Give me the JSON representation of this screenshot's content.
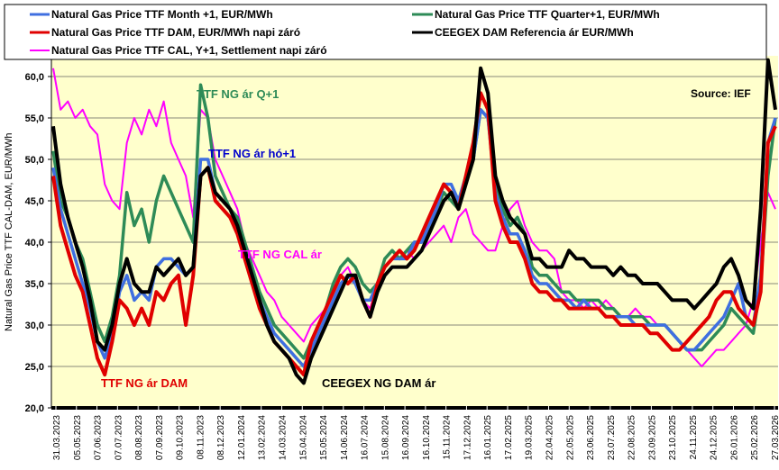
{
  "chart_data": {
    "type": "line",
    "title": "",
    "ylabel": "Natural Gas Price TTF CAL-DAM, EUR/MWh",
    "xlabel": "",
    "ylim": [
      20,
      62.5
    ],
    "yticks": [
      20,
      25,
      30,
      35,
      40,
      45,
      50,
      55,
      60
    ],
    "ytick_labels": [
      "20,0",
      "25,0",
      "30,0",
      "35,0",
      "40,0",
      "45,0",
      "50,0",
      "55,0",
      "60,0"
    ],
    "grid": true,
    "legend_position": "top",
    "x_tick_labels": [
      "31.03.2023",
      "05.05.2023",
      "07.06.2023",
      "07.07.2023",
      "08.08.2023",
      "07.09.2023",
      "09.10.2023",
      "08.11.2023",
      "08.12.2023",
      "12.01.2024",
      "13.02.2024",
      "14.03.2024",
      "15.04.2024",
      "15.05.2024",
      "14.06.2024",
      "16.07.2024",
      "15.08.2024",
      "16.09.2024",
      "16.10.2024",
      "15.11.2024",
      "17.12.2024",
      "16.01.2025",
      "17.02.2025",
      "19.03.2025",
      "22.04.2025",
      "22.05.2025",
      "23.06.2025",
      "23.07.2025",
      "22.08.2025",
      "23.09.2025",
      "23.10.2025",
      "24.11.2025",
      "24.12.2025",
      "26.01.2026",
      "25.02.2026",
      "27.03.2026"
    ],
    "series": [
      {
        "name": "Natural Gas Price TTF CAL, Y+1, Settlement napi záró",
        "color": "#ff00ff",
        "values": [
          61,
          56,
          57,
          55,
          56,
          54,
          53,
          47,
          45,
          44,
          52,
          55,
          53,
          56,
          54,
          57,
          52,
          50,
          48,
          43,
          56,
          55,
          50,
          48,
          46,
          44,
          40,
          38,
          36,
          34,
          33,
          31,
          30,
          29,
          28,
          30,
          31,
          32,
          34,
          36,
          37,
          35,
          33,
          32,
          35,
          37,
          38,
          38,
          39,
          38,
          39,
          40,
          41,
          42,
          40,
          43,
          44,
          41,
          40,
          39,
          39,
          42,
          44,
          45,
          42,
          40,
          39,
          39,
          38,
          34,
          33,
          33,
          32,
          33,
          32,
          33,
          32,
          31,
          31,
          32,
          31,
          31,
          30,
          30,
          29,
          28,
          27,
          26,
          25,
          26,
          27,
          27,
          28,
          29,
          30,
          33,
          40,
          46,
          44
        ]
      },
      {
        "name": "Natural Gas Price TTF Quarter+1, EUR/MWh",
        "color": "#2e8b57",
        "values": [
          51,
          45,
          43,
          40,
          38,
          34,
          30,
          28,
          31,
          36,
          46,
          42,
          44,
          40,
          45,
          48,
          46,
          44,
          42,
          40,
          59,
          55,
          48,
          46,
          44,
          43,
          40,
          37,
          34,
          32,
          30,
          29,
          28,
          27,
          26,
          28,
          30,
          32,
          35,
          37,
          38,
          37,
          35,
          34,
          35,
          38,
          39,
          38,
          39,
          40,
          40,
          42,
          44,
          46,
          45,
          44,
          48,
          50,
          56,
          55,
          47,
          44,
          42,
          43,
          41,
          37,
          36,
          36,
          35,
          34,
          34,
          33,
          33,
          33,
          33,
          32,
          32,
          31,
          31,
          31,
          31,
          30,
          30,
          30,
          29,
          28,
          27,
          27,
          27,
          28,
          29,
          30,
          32,
          31,
          30,
          29,
          35,
          48,
          55
        ]
      },
      {
        "name": "Natural Gas Price TTF Month +1, EUR/MWh",
        "color": "#3f6fe0",
        "values": [
          49,
          44,
          41,
          38,
          35,
          32,
          28,
          26,
          29,
          34,
          36,
          33,
          34,
          33,
          37,
          38,
          38,
          37,
          36,
          37,
          50,
          50,
          46,
          45,
          44,
          42,
          39,
          36,
          33,
          31,
          29,
          28,
          27,
          26,
          25,
          27,
          29,
          31,
          33,
          35,
          36,
          35,
          33,
          33,
          35,
          37,
          38,
          38,
          38,
          40,
          40,
          42,
          44,
          47,
          47,
          45,
          48,
          50,
          56,
          55,
          46,
          43,
          41,
          41,
          39,
          36,
          35,
          35,
          34,
          33,
          33,
          32,
          33,
          32,
          32,
          31,
          31,
          31,
          31,
          30,
          30,
          30,
          30,
          30,
          29,
          28,
          27,
          27,
          28,
          29,
          30,
          31,
          33,
          35,
          31,
          30,
          36,
          52,
          55
        ]
      },
      {
        "name": "Natural Gas Price TTF DAM, EUR/MWh napi záró",
        "color": "#e00000",
        "values": [
          48,
          42,
          39,
          36,
          34,
          30,
          26,
          24,
          28,
          33,
          32,
          30,
          32,
          30,
          34,
          33,
          35,
          36,
          30,
          36,
          48,
          49,
          45,
          44,
          43,
          41,
          38,
          35,
          32,
          30,
          28,
          27,
          26,
          25,
          24,
          28,
          30,
          32,
          34,
          36,
          35,
          36,
          33,
          31,
          35,
          37,
          38,
          39,
          38,
          39,
          41,
          43,
          45,
          47,
          46,
          44,
          48,
          52,
          58,
          56,
          45,
          42,
          40,
          40,
          38,
          35,
          34,
          34,
          33,
          33,
          32,
          32,
          32,
          32,
          32,
          31,
          31,
          30,
          30,
          30,
          30,
          29,
          29,
          28,
          27,
          27,
          28,
          29,
          30,
          31,
          33,
          34,
          34,
          32,
          31,
          30,
          34,
          52,
          54
        ]
      },
      {
        "name": "CEEGEX DAM Referencia ár  EUR/MWh",
        "color": "#000000",
        "values": [
          54,
          47,
          43,
          40,
          37,
          33,
          28,
          27,
          30,
          35,
          38,
          35,
          34,
          34,
          37,
          36,
          37,
          38,
          36,
          37,
          48,
          49,
          46,
          45,
          44,
          42,
          39,
          36,
          33,
          30,
          28,
          27,
          26,
          24,
          23,
          26,
          28,
          30,
          32,
          34,
          36,
          36,
          33,
          31,
          34,
          36,
          37,
          37,
          37,
          38,
          39,
          41,
          43,
          45,
          46,
          44,
          47,
          50,
          61,
          58,
          48,
          45,
          43,
          42,
          41,
          38,
          38,
          37,
          37,
          37,
          39,
          38,
          38,
          37,
          37,
          37,
          36,
          37,
          36,
          36,
          35,
          35,
          35,
          34,
          33,
          33,
          33,
          32,
          33,
          34,
          35,
          37,
          38,
          36,
          33,
          32,
          44,
          62,
          56
        ]
      }
    ],
    "annotations": [
      {
        "text": "TTF NG ár Q+1",
        "color": "#2e8b57"
      },
      {
        "text": "TTF NG ár hó+1",
        "color": "#0000cc"
      },
      {
        "text": "TTF NG CAL ár",
        "color": "#ff00ff"
      },
      {
        "text": "TTF NG ár DAM",
        "color": "#e00000"
      },
      {
        "text": "CEEGEX NG DAM ár",
        "color": "#000000"
      },
      {
        "text": "Source: IEF",
        "color": "#000000"
      }
    ]
  },
  "legend": {
    "items": [
      {
        "label": "Natural Gas Price TTF Month +1, EUR/MWh",
        "color": "#3f6fe0"
      },
      {
        "label": "Natural Gas Price TTF Quarter+1, EUR/MWh",
        "color": "#2e8b57"
      },
      {
        "label": "Natural Gas Price TTF DAM, EUR/MWh napi záró",
        "color": "#e00000"
      },
      {
        "label": "CEEGEX DAM Referencia ár  EUR/MWh",
        "color": "#000000"
      },
      {
        "label": "Natural Gas Price TTF CAL, Y+1, Settlement napi záró",
        "color": "#ff00ff"
      }
    ]
  },
  "colors": {
    "plot_background": "#ffffcc",
    "gridline": "#8a8a7a"
  }
}
